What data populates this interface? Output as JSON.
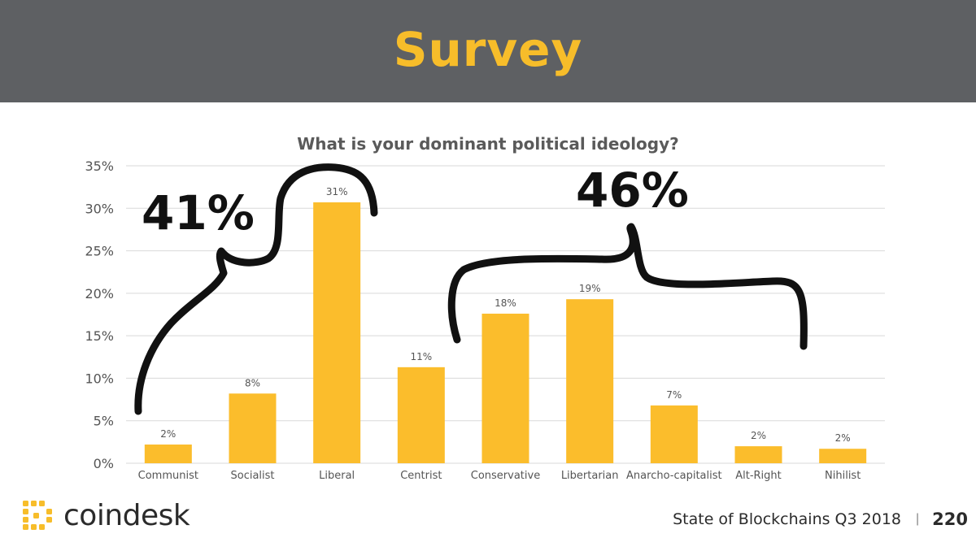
{
  "header": {
    "title": "Survey"
  },
  "chart_data": {
    "type": "bar",
    "title": "What is your dominant political ideology?",
    "categories": [
      "Communist",
      "Socialist",
      "Liberal",
      "Centrist",
      "Conservative",
      "Libertarian",
      "Anarcho-capitalist",
      "Alt-Right",
      "Nihilist"
    ],
    "values": [
      2.2,
      8.2,
      30.7,
      11.3,
      17.6,
      19.3,
      6.8,
      2.0,
      1.7
    ],
    "data_labels": [
      "2%",
      "8%",
      "31%",
      "11%",
      "18%",
      "19%",
      "7%",
      "2%",
      "2%"
    ],
    "ylim": [
      0,
      35
    ],
    "yticks": [
      "0%",
      "5%",
      "10%",
      "15%",
      "20%",
      "25%",
      "30%",
      "35%"
    ],
    "ytick_values": [
      0,
      5,
      10,
      15,
      20,
      25,
      30,
      35
    ],
    "grid": true,
    "bar_color": "#fbbd2c",
    "grid_color": "#d9d9d9"
  },
  "annotations": {
    "left_total": "41%",
    "right_total": "46%"
  },
  "footer": {
    "brand": "coindesk",
    "caption": "State of Blockchains Q3 2018",
    "separator": "|",
    "page_number": "220",
    "logo_color": "#f7bd2a"
  }
}
